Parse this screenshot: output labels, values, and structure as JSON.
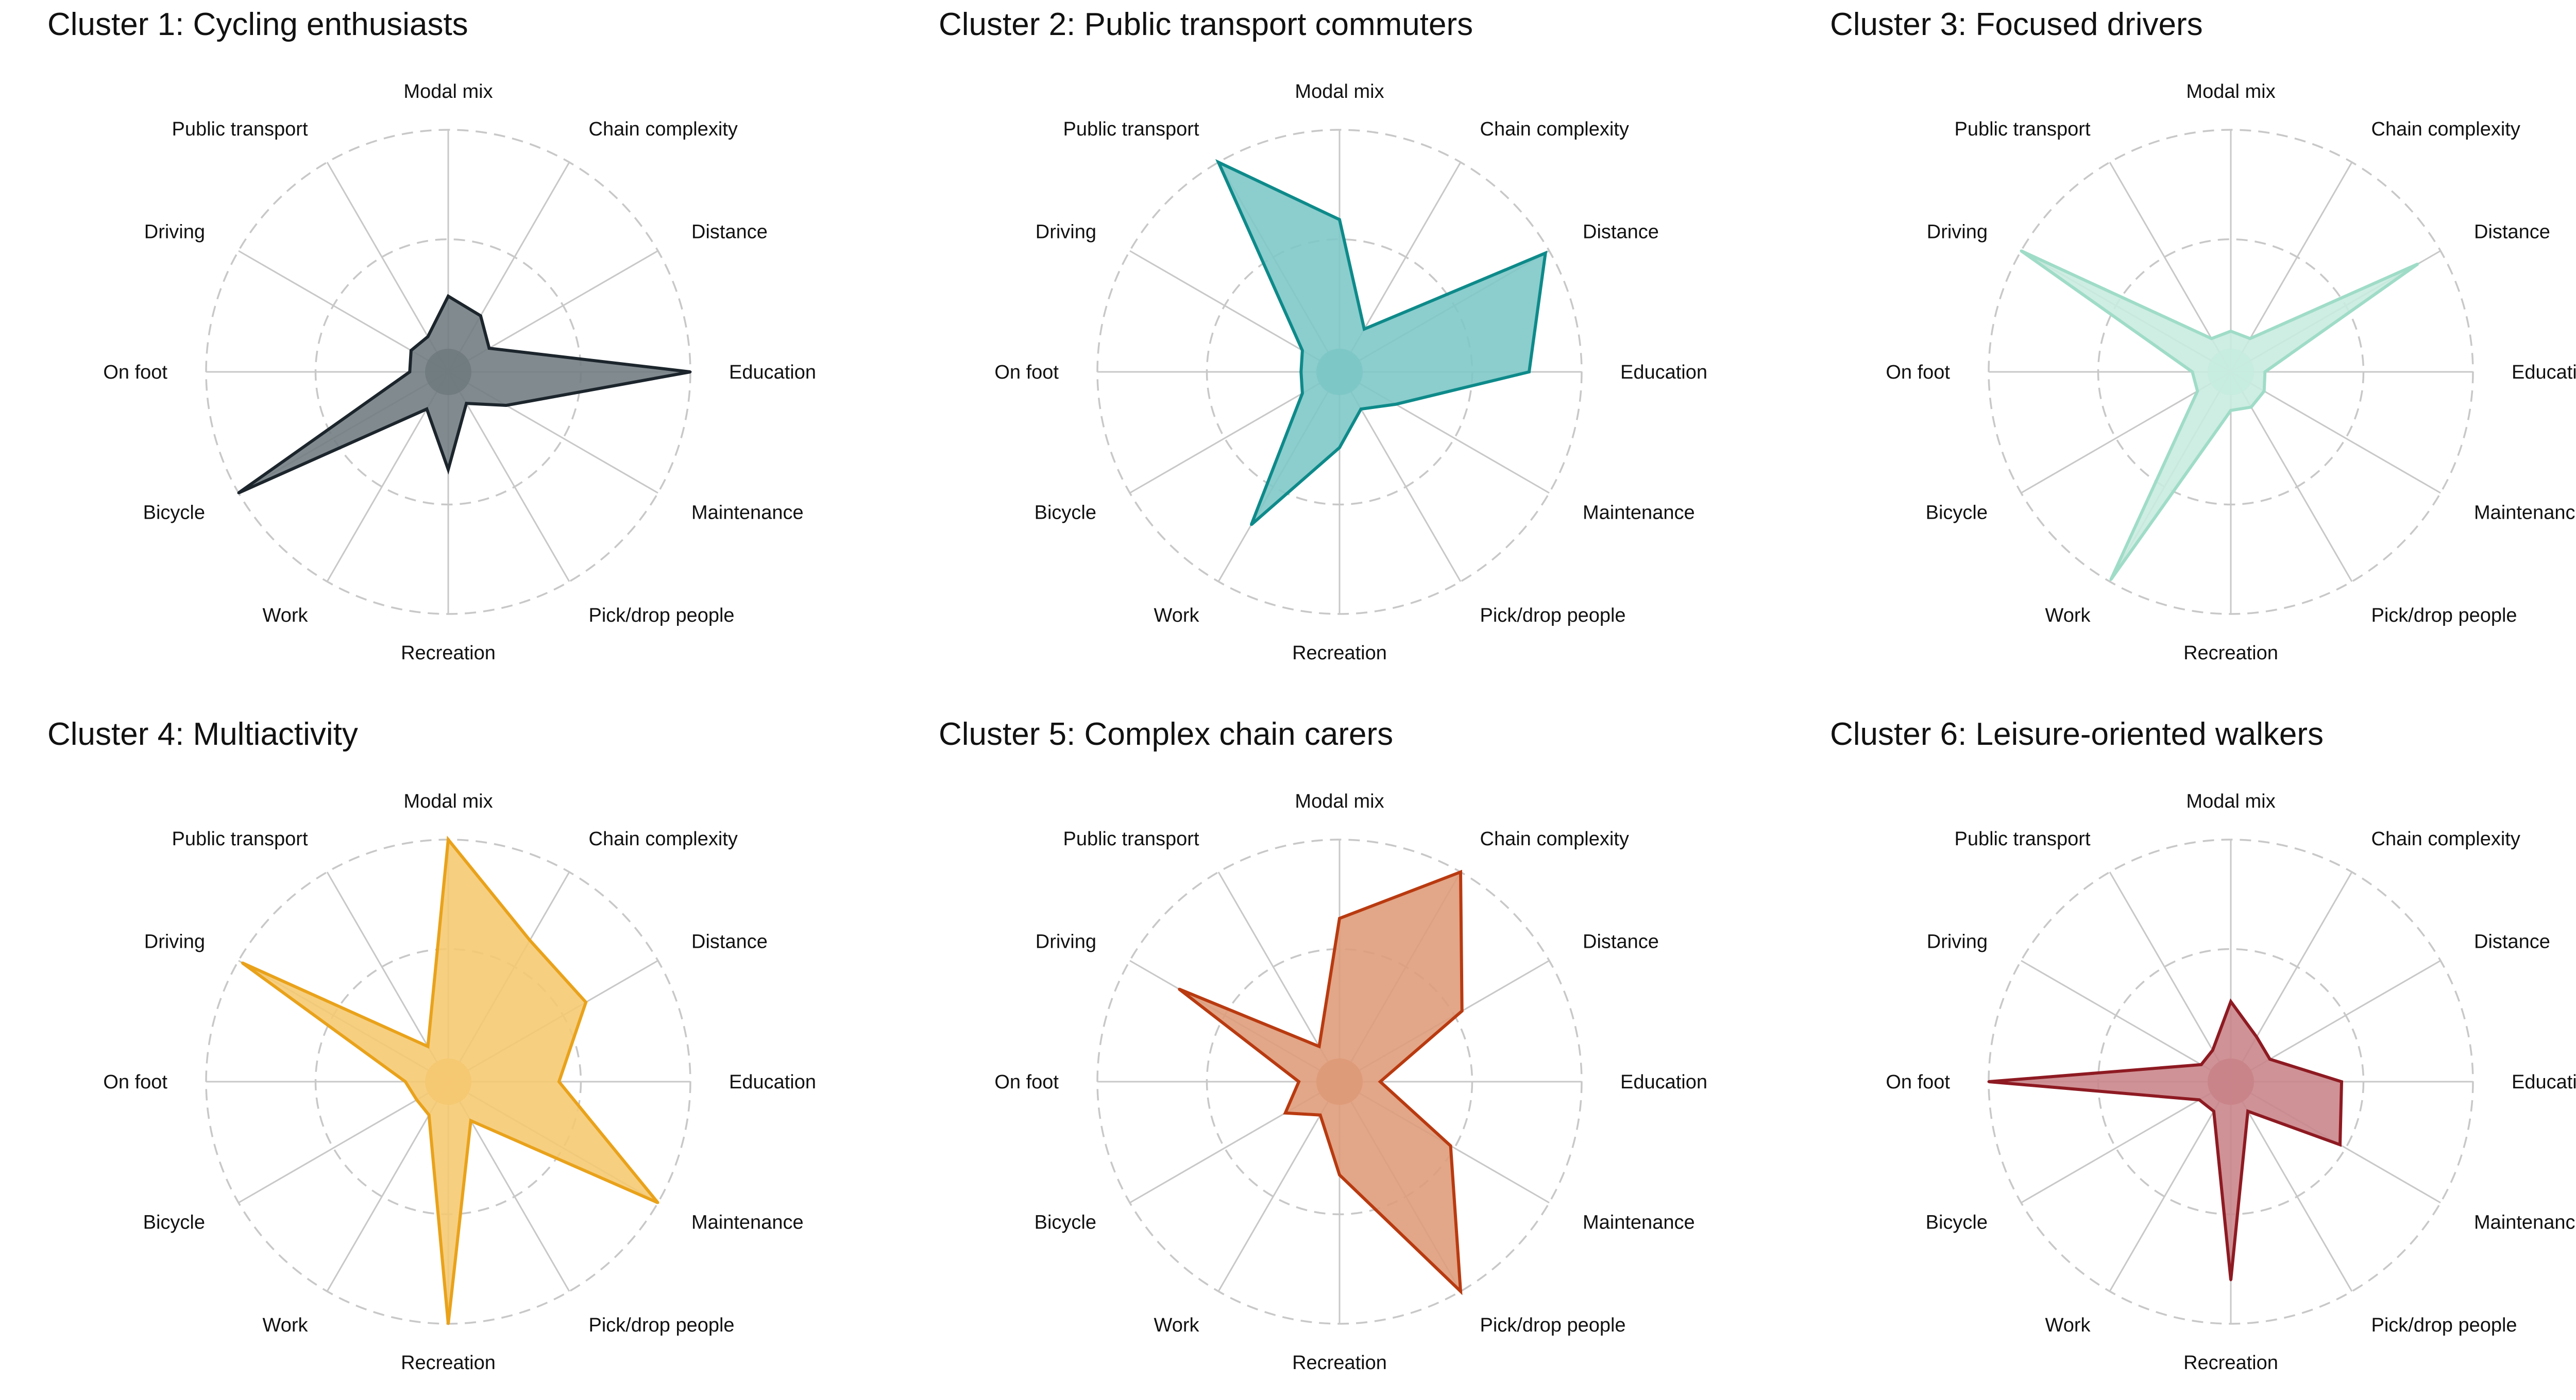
{
  "chart_data": {
    "type": "radar",
    "axes": [
      "Modal mix",
      "Chain complexity",
      "Distance",
      "Education",
      "Maintenance",
      "Pick/drop people",
      "Recreation",
      "Work",
      "Bicycle",
      "On foot",
      "Driving",
      "Public transport"
    ],
    "range": [
      0,
      1
    ],
    "grid_rings": [
      0.5,
      1.0
    ],
    "panels": [
      {
        "title": "Cluster 1: Cycling enthusiasts",
        "color": "#1c252c",
        "fill": "#6f7a80",
        "values": [
          0.24,
          0.19,
          0.11,
          1.0,
          0.2,
          0.06,
          0.34,
          0.09,
          1.0,
          0.07,
          0.09,
          0.08
        ]
      },
      {
        "title": "Cluster 2: Public transport commuters",
        "color": "#0e8a8a",
        "fill": "#7cc6c6",
        "values": [
          0.59,
          0.12,
          0.98,
          0.76,
          0.19,
          0.09,
          0.24,
          0.7,
          0.09,
          0.07,
          0.09,
          1.0
        ]
      },
      {
        "title": "Cluster 3: Focused drivers",
        "color": "#9fdcc8",
        "fill": "#c7ebdf",
        "values": [
          0.08,
          0.07,
          0.88,
          0.05,
          0.07,
          0.08,
          0.07,
          0.99,
          0.07,
          0.07,
          1.0,
          0.07
        ]
      },
      {
        "title": "Cluster 4: Multiactivity",
        "color": "#e9a21a",
        "fill": "#f5c870",
        "values": [
          1.0,
          0.64,
          0.62,
          0.4,
          1.0,
          0.1,
          1.0,
          0.07,
          0.06,
          0.09,
          0.98,
          0.08
        ]
      },
      {
        "title": "Cluster 5: Complex chain carers",
        "color": "#b93a10",
        "fill": "#de9a78",
        "values": [
          0.64,
          1.0,
          0.54,
          0.08,
          0.48,
          1.0,
          0.32,
          0.07,
          0.18,
          0.08,
          0.74,
          0.08
        ]
      },
      {
        "title": "Cluster 6: Leisure-oriented walkers",
        "color": "#8e1a22",
        "fill": "#c88388",
        "values": [
          0.26,
          0.13,
          0.1,
          0.4,
          0.47,
          0.05,
          0.8,
          0.05,
          0.06,
          1.0,
          0.05,
          0.06
        ]
      }
    ]
  }
}
